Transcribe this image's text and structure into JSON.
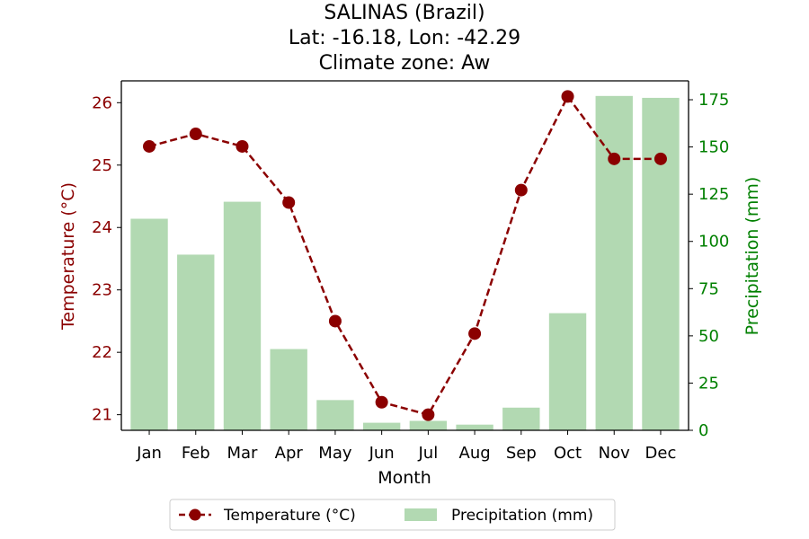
{
  "chart_data": {
    "type": "bar",
    "title": [
      "SALINAS (Brazil)",
      "Lat: -16.18, Lon: -42.29",
      "Climate zone: Aw"
    ],
    "xlabel": "Month",
    "categories": [
      "Jan",
      "Feb",
      "Mar",
      "Apr",
      "May",
      "Jun",
      "Jul",
      "Aug",
      "Sep",
      "Oct",
      "Nov",
      "Dec"
    ],
    "series": [
      {
        "name": "Temperature (°C)",
        "type": "line",
        "axis": "left",
        "values": [
          25.3,
          25.5,
          25.3,
          24.4,
          22.5,
          21.2,
          21.0,
          22.3,
          24.6,
          26.1,
          25.1,
          25.1
        ]
      },
      {
        "name": "Precipitation (mm)",
        "type": "bar",
        "axis": "right",
        "values": [
          112,
          93,
          121,
          43,
          16,
          4,
          5,
          3,
          12,
          62,
          177,
          176
        ]
      }
    ],
    "y_left": {
      "label": "Temperature (°C)",
      "ylim": [
        20.75,
        26.35
      ],
      "ticks": [
        "21",
        "22",
        "23",
        "24",
        "25",
        "26"
      ]
    },
    "y_right": {
      "label": "Precipitation (mm)",
      "ylim": [
        0,
        185
      ],
      "ticks": [
        "0",
        "25",
        "50",
        "75",
        "100",
        "125",
        "150",
        "175"
      ]
    },
    "grid": false,
    "legend_position": "bottom-center",
    "colors": {
      "temperature": "#8b0000",
      "precipitation": "#b2d9b2",
      "right_axis": "#008000"
    }
  }
}
